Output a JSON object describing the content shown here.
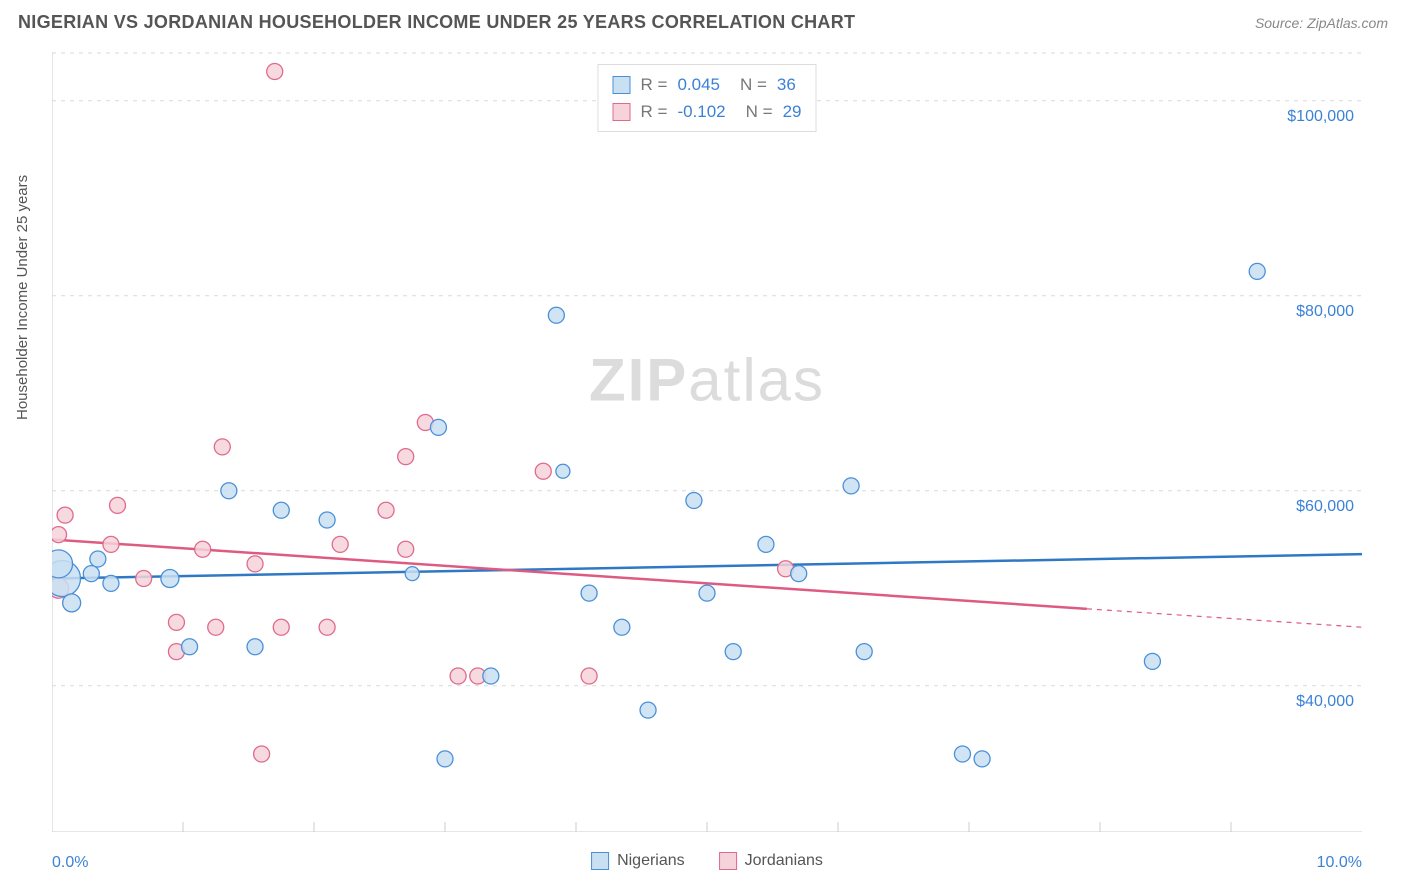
{
  "header": {
    "title": "NIGERIAN VS JORDANIAN HOUSEHOLDER INCOME UNDER 25 YEARS CORRELATION CHART",
    "source": "Source: ZipAtlas.com"
  },
  "ylabel": "Householder Income Under 25 years",
  "watermark": {
    "zip": "ZIP",
    "atlas": "atlas"
  },
  "chart": {
    "type": "scatter",
    "background": "#ffffff",
    "grid_color": "#d9d9d9",
    "border_color": "#cccccc",
    "xlim": [
      0,
      10
    ],
    "ylim": [
      25000,
      105000
    ],
    "ygrid_values": [
      40000,
      60000,
      80000,
      100000
    ],
    "ytick_labels": [
      "$40,000",
      "$60,000",
      "$80,000",
      "$100,000"
    ],
    "ytick_color": "#3b82d6",
    "xmin_label": "0.0%",
    "xmax_label": "10.0%",
    "xtick_positions": [
      1,
      2,
      3,
      4,
      5,
      6,
      7,
      8,
      9
    ],
    "series": [
      {
        "name": "Nigerians",
        "fill": "#c9dff2",
        "stroke": "#4a90d9",
        "line_color": "#2f78c4",
        "r_value": "0.045",
        "n_value": "36",
        "trend": {
          "y_start": 51000,
          "y_end": 53500,
          "x_solid_end": 10
        },
        "points": [
          {
            "x": 0.08,
            "y": 51000,
            "r": 18
          },
          {
            "x": 0.05,
            "y": 52500,
            "r": 14
          },
          {
            "x": 0.15,
            "y": 48500,
            "r": 9
          },
          {
            "x": 0.3,
            "y": 51500,
            "r": 8
          },
          {
            "x": 0.35,
            "y": 53000,
            "r": 8
          },
          {
            "x": 0.45,
            "y": 50500,
            "r": 8
          },
          {
            "x": 0.9,
            "y": 51000,
            "r": 9
          },
          {
            "x": 1.05,
            "y": 44000,
            "r": 8
          },
          {
            "x": 1.35,
            "y": 60000,
            "r": 8
          },
          {
            "x": 1.55,
            "y": 44000,
            "r": 8
          },
          {
            "x": 1.75,
            "y": 58000,
            "r": 8
          },
          {
            "x": 2.1,
            "y": 57000,
            "r": 8
          },
          {
            "x": 2.75,
            "y": 51500,
            "r": 7
          },
          {
            "x": 2.95,
            "y": 66500,
            "r": 8
          },
          {
            "x": 3.0,
            "y": 32500,
            "r": 8
          },
          {
            "x": 3.35,
            "y": 41000,
            "r": 8
          },
          {
            "x": 3.85,
            "y": 78000,
            "r": 8
          },
          {
            "x": 3.9,
            "y": 62000,
            "r": 7
          },
          {
            "x": 4.1,
            "y": 49500,
            "r": 8
          },
          {
            "x": 4.35,
            "y": 46000,
            "r": 8
          },
          {
            "x": 4.55,
            "y": 37500,
            "r": 8
          },
          {
            "x": 4.9,
            "y": 59000,
            "r": 8
          },
          {
            "x": 5.0,
            "y": 49500,
            "r": 8
          },
          {
            "x": 5.2,
            "y": 43500,
            "r": 8
          },
          {
            "x": 5.45,
            "y": 54500,
            "r": 8
          },
          {
            "x": 5.7,
            "y": 51500,
            "r": 8
          },
          {
            "x": 6.1,
            "y": 60500,
            "r": 8
          },
          {
            "x": 6.2,
            "y": 43500,
            "r": 8
          },
          {
            "x": 6.95,
            "y": 33000,
            "r": 8
          },
          {
            "x": 7.1,
            "y": 32500,
            "r": 8
          },
          {
            "x": 8.4,
            "y": 42500,
            "r": 8
          },
          {
            "x": 9.2,
            "y": 82500,
            "r": 8
          }
        ]
      },
      {
        "name": "Jordanians",
        "fill": "#f6d2db",
        "stroke": "#e06a8c",
        "line_color": "#dd5b81",
        "r_value": "-0.102",
        "n_value": "29",
        "trend": {
          "y_start": 55000,
          "y_end": 46000,
          "x_solid_end": 7.9
        },
        "points": [
          {
            "x": 0.05,
            "y": 55500,
            "r": 8
          },
          {
            "x": 0.1,
            "y": 57500,
            "r": 8
          },
          {
            "x": 0.05,
            "y": 50000,
            "r": 10
          },
          {
            "x": 0.5,
            "y": 58500,
            "r": 8
          },
          {
            "x": 0.45,
            "y": 54500,
            "r": 8
          },
          {
            "x": 0.7,
            "y": 51000,
            "r": 8
          },
          {
            "x": 0.95,
            "y": 46500,
            "r": 8
          },
          {
            "x": 0.95,
            "y": 43500,
            "r": 8
          },
          {
            "x": 1.15,
            "y": 54000,
            "r": 8
          },
          {
            "x": 1.25,
            "y": 46000,
            "r": 8
          },
          {
            "x": 1.3,
            "y": 64500,
            "r": 8
          },
          {
            "x": 1.55,
            "y": 52500,
            "r": 8
          },
          {
            "x": 1.6,
            "y": 33000,
            "r": 8
          },
          {
            "x": 1.7,
            "y": 103000,
            "r": 8
          },
          {
            "x": 1.75,
            "y": 46000,
            "r": 8
          },
          {
            "x": 2.1,
            "y": 46000,
            "r": 8
          },
          {
            "x": 2.2,
            "y": 54500,
            "r": 8
          },
          {
            "x": 2.55,
            "y": 58000,
            "r": 8
          },
          {
            "x": 2.7,
            "y": 63500,
            "r": 8
          },
          {
            "x": 2.7,
            "y": 54000,
            "r": 8
          },
          {
            "x": 2.85,
            "y": 67000,
            "r": 8
          },
          {
            "x": 3.1,
            "y": 41000,
            "r": 8
          },
          {
            "x": 3.25,
            "y": 41000,
            "r": 8
          },
          {
            "x": 3.75,
            "y": 62000,
            "r": 8
          },
          {
            "x": 4.1,
            "y": 41000,
            "r": 8
          },
          {
            "x": 5.6,
            "y": 52000,
            "r": 8
          }
        ]
      }
    ],
    "legend": {
      "series1": "Nigerians",
      "series2": "Jordanians"
    }
  }
}
